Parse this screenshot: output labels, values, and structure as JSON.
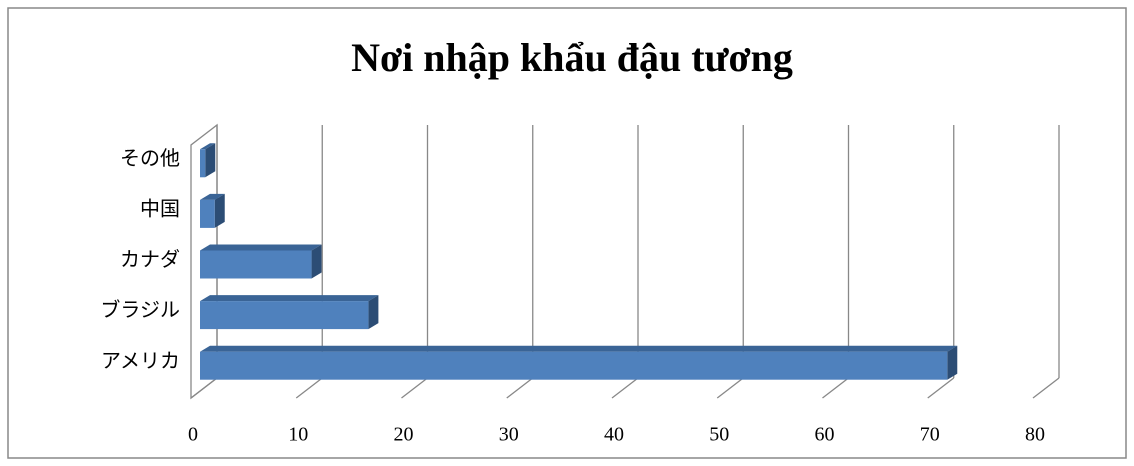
{
  "chart_data": {
    "type": "bar",
    "orientation": "horizontal",
    "title": "Nơi nhập khẩu đậu tương",
    "categories": [
      "アメリカ",
      "ブラジル",
      "カナダ",
      "中国",
      "その他"
    ],
    "values": [
      71,
      16,
      10.6,
      1.4,
      0.5
    ],
    "color": "#4f81bd",
    "xlim": [
      0,
      80
    ],
    "xticks": [
      0,
      10,
      20,
      30,
      40,
      50,
      60,
      70,
      80
    ],
    "grid": true
  }
}
